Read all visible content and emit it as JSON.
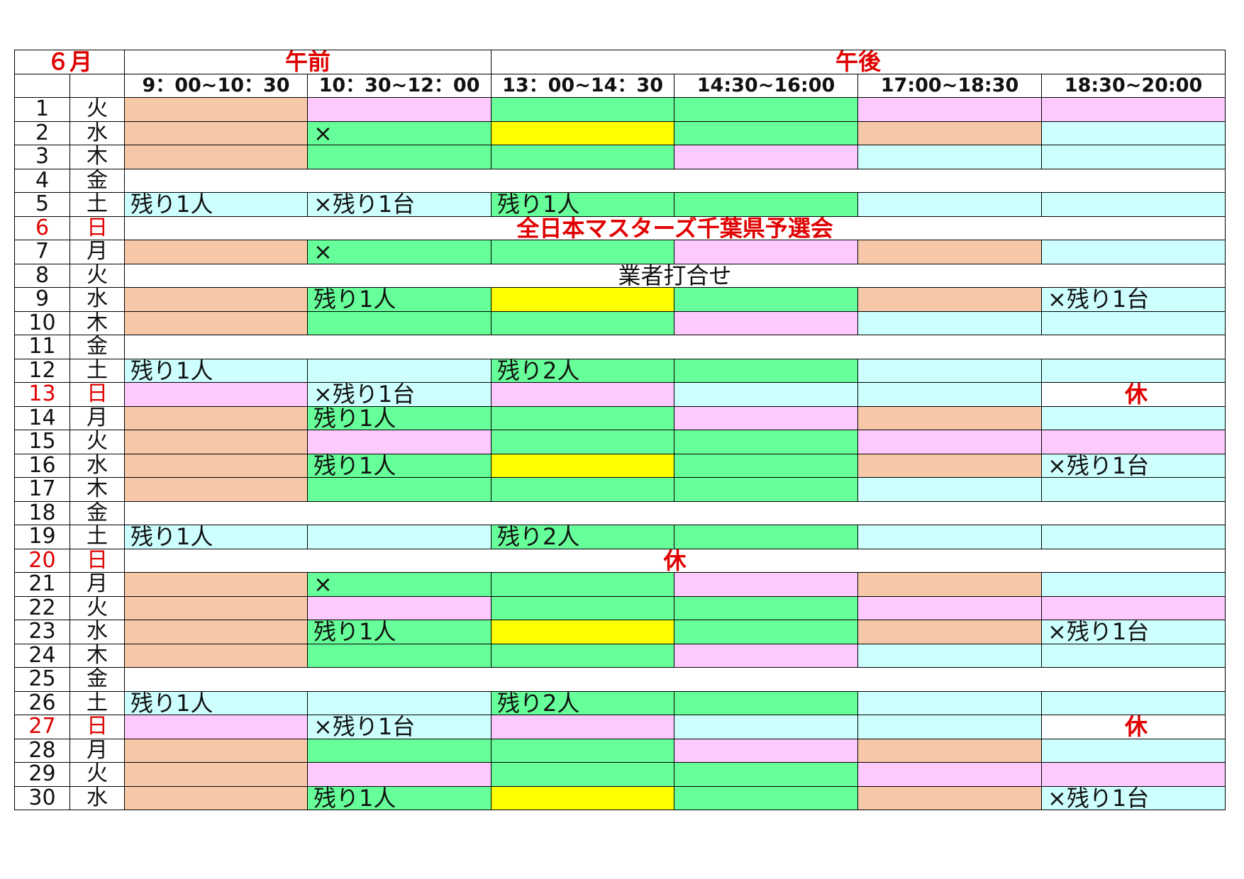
{
  "colors": {
    "orange": "#f7c8a8",
    "pink": "#fecafe",
    "green": "#66ff99",
    "yellow": "#ffff00",
    "cyan": "#ccfffe",
    "white": "#ffffff",
    "red_text": "#e00000"
  },
  "header": {
    "month": "６月",
    "morning": "午前",
    "afternoon": "午後",
    "slots": [
      "9：00~10：30",
      "10：30~12：00",
      "13：00~14：30",
      "14:30~16:00",
      "17:00~18:30",
      "18:30~20:00"
    ]
  },
  "rows": [
    {
      "day": "1",
      "wd": "火",
      "cells": [
        {
          "c": "orange",
          "t": ""
        },
        {
          "c": "pink",
          "t": ""
        },
        {
          "c": "green",
          "t": ""
        },
        {
          "c": "green",
          "t": ""
        },
        {
          "c": "pink",
          "t": ""
        },
        {
          "c": "pink",
          "t": ""
        }
      ]
    },
    {
      "day": "2",
      "wd": "水",
      "cells": [
        {
          "c": "orange",
          "t": ""
        },
        {
          "c": "green",
          "t": "×"
        },
        {
          "c": "yellow",
          "t": ""
        },
        {
          "c": "green",
          "t": ""
        },
        {
          "c": "orange",
          "t": ""
        },
        {
          "c": "cyan",
          "t": ""
        }
      ]
    },
    {
      "day": "3",
      "wd": "木",
      "cells": [
        {
          "c": "orange",
          "t": ""
        },
        {
          "c": "green",
          "t": ""
        },
        {
          "c": "green",
          "t": ""
        },
        {
          "c": "pink",
          "t": ""
        },
        {
          "c": "cyan",
          "t": ""
        },
        {
          "c": "cyan",
          "t": ""
        }
      ]
    },
    {
      "day": "4",
      "wd": "金",
      "span": {
        "t": "",
        "style": "plain"
      }
    },
    {
      "day": "5",
      "wd": "土",
      "cells": [
        {
          "c": "cyan",
          "t": "残り1人"
        },
        {
          "c": "cyan",
          "t": "×残り1台"
        },
        {
          "c": "green",
          "t": "残り1人"
        },
        {
          "c": "green",
          "t": ""
        },
        {
          "c": "cyan",
          "t": ""
        },
        {
          "c": "cyan",
          "t": ""
        }
      ]
    },
    {
      "day": "6",
      "wd": "日",
      "sunday": true,
      "span": {
        "t": "全日本マスターズ千葉県予選会",
        "style": "red"
      }
    },
    {
      "day": "7",
      "wd": "月",
      "cells": [
        {
          "c": "orange",
          "t": ""
        },
        {
          "c": "green",
          "t": "×"
        },
        {
          "c": "green",
          "t": ""
        },
        {
          "c": "pink",
          "t": ""
        },
        {
          "c": "orange",
          "t": ""
        },
        {
          "c": "cyan",
          "t": ""
        }
      ]
    },
    {
      "day": "8",
      "wd": "火",
      "span": {
        "t": "業者打合せ",
        "style": "plain"
      }
    },
    {
      "day": "9",
      "wd": "水",
      "cells": [
        {
          "c": "orange",
          "t": ""
        },
        {
          "c": "green",
          "t": "残り1人"
        },
        {
          "c": "yellow",
          "t": ""
        },
        {
          "c": "green",
          "t": ""
        },
        {
          "c": "orange",
          "t": ""
        },
        {
          "c": "cyan",
          "t": "×残り1台"
        }
      ]
    },
    {
      "day": "10",
      "wd": "木",
      "cells": [
        {
          "c": "orange",
          "t": ""
        },
        {
          "c": "green",
          "t": ""
        },
        {
          "c": "green",
          "t": ""
        },
        {
          "c": "pink",
          "t": ""
        },
        {
          "c": "cyan",
          "t": ""
        },
        {
          "c": "cyan",
          "t": ""
        }
      ]
    },
    {
      "day": "11",
      "wd": "金",
      "span": {
        "t": "",
        "style": "plain"
      }
    },
    {
      "day": "12",
      "wd": "土",
      "cells": [
        {
          "c": "cyan",
          "t": "残り1人"
        },
        {
          "c": "cyan",
          "t": ""
        },
        {
          "c": "green",
          "t": "残り2人"
        },
        {
          "c": "green",
          "t": ""
        },
        {
          "c": "cyan",
          "t": ""
        },
        {
          "c": "cyan",
          "t": ""
        }
      ]
    },
    {
      "day": "13",
      "wd": "日",
      "sunday": true,
      "cells": [
        {
          "c": "pink",
          "t": ""
        },
        {
          "c": "cyan",
          "t": "×残り1台"
        },
        {
          "c": "pink",
          "t": ""
        },
        {
          "c": "cyan",
          "t": ""
        },
        {
          "c": "cyan",
          "t": ""
        },
        {
          "c": "white",
          "t": "休",
          "holiday": true
        }
      ]
    },
    {
      "day": "14",
      "wd": "月",
      "cells": [
        {
          "c": "orange",
          "t": ""
        },
        {
          "c": "green",
          "t": "残り1人"
        },
        {
          "c": "green",
          "t": ""
        },
        {
          "c": "pink",
          "t": ""
        },
        {
          "c": "orange",
          "t": ""
        },
        {
          "c": "cyan",
          "t": ""
        }
      ]
    },
    {
      "day": "15",
      "wd": "火",
      "cells": [
        {
          "c": "orange",
          "t": ""
        },
        {
          "c": "pink",
          "t": ""
        },
        {
          "c": "green",
          "t": ""
        },
        {
          "c": "green",
          "t": ""
        },
        {
          "c": "pink",
          "t": ""
        },
        {
          "c": "pink",
          "t": ""
        }
      ]
    },
    {
      "day": "16",
      "wd": "水",
      "cells": [
        {
          "c": "orange",
          "t": ""
        },
        {
          "c": "green",
          "t": "残り1人"
        },
        {
          "c": "yellow",
          "t": ""
        },
        {
          "c": "green",
          "t": ""
        },
        {
          "c": "orange",
          "t": ""
        },
        {
          "c": "cyan",
          "t": "×残り1台"
        }
      ]
    },
    {
      "day": "17",
      "wd": "木",
      "cells": [
        {
          "c": "orange",
          "t": ""
        },
        {
          "c": "green",
          "t": ""
        },
        {
          "c": "green",
          "t": ""
        },
        {
          "c": "green",
          "t": ""
        },
        {
          "c": "cyan",
          "t": ""
        },
        {
          "c": "cyan",
          "t": ""
        }
      ]
    },
    {
      "day": "18",
      "wd": "金",
      "span": {
        "t": "",
        "style": "plain"
      }
    },
    {
      "day": "19",
      "wd": "土",
      "cells": [
        {
          "c": "cyan",
          "t": "残り1人"
        },
        {
          "c": "cyan",
          "t": ""
        },
        {
          "c": "green",
          "t": "残り2人"
        },
        {
          "c": "green",
          "t": ""
        },
        {
          "c": "cyan",
          "t": ""
        },
        {
          "c": "cyan",
          "t": ""
        }
      ]
    },
    {
      "day": "20",
      "wd": "日",
      "sunday": true,
      "span": {
        "t": "休",
        "style": "red"
      }
    },
    {
      "day": "21",
      "wd": "月",
      "cells": [
        {
          "c": "orange",
          "t": ""
        },
        {
          "c": "green",
          "t": "×"
        },
        {
          "c": "green",
          "t": ""
        },
        {
          "c": "pink",
          "t": ""
        },
        {
          "c": "orange",
          "t": ""
        },
        {
          "c": "cyan",
          "t": ""
        }
      ]
    },
    {
      "day": "22",
      "wd": "火",
      "cells": [
        {
          "c": "orange",
          "t": ""
        },
        {
          "c": "pink",
          "t": ""
        },
        {
          "c": "green",
          "t": ""
        },
        {
          "c": "green",
          "t": ""
        },
        {
          "c": "pink",
          "t": ""
        },
        {
          "c": "pink",
          "t": ""
        }
      ]
    },
    {
      "day": "23",
      "wd": "水",
      "cells": [
        {
          "c": "orange",
          "t": ""
        },
        {
          "c": "green",
          "t": "残り1人"
        },
        {
          "c": "yellow",
          "t": ""
        },
        {
          "c": "green",
          "t": ""
        },
        {
          "c": "orange",
          "t": ""
        },
        {
          "c": "cyan",
          "t": "×残り1台"
        }
      ]
    },
    {
      "day": "24",
      "wd": "木",
      "cells": [
        {
          "c": "orange",
          "t": ""
        },
        {
          "c": "green",
          "t": ""
        },
        {
          "c": "green",
          "t": ""
        },
        {
          "c": "pink",
          "t": ""
        },
        {
          "c": "cyan",
          "t": ""
        },
        {
          "c": "cyan",
          "t": ""
        }
      ]
    },
    {
      "day": "25",
      "wd": "金",
      "span": {
        "t": "",
        "style": "plain"
      }
    },
    {
      "day": "26",
      "wd": "土",
      "cells": [
        {
          "c": "cyan",
          "t": "残り1人"
        },
        {
          "c": "cyan",
          "t": ""
        },
        {
          "c": "green",
          "t": "残り2人"
        },
        {
          "c": "green",
          "t": ""
        },
        {
          "c": "cyan",
          "t": ""
        },
        {
          "c": "cyan",
          "t": ""
        }
      ]
    },
    {
      "day": "27",
      "wd": "日",
      "sunday": true,
      "cells": [
        {
          "c": "pink",
          "t": ""
        },
        {
          "c": "cyan",
          "t": "×残り1台"
        },
        {
          "c": "pink",
          "t": ""
        },
        {
          "c": "cyan",
          "t": ""
        },
        {
          "c": "cyan",
          "t": ""
        },
        {
          "c": "white",
          "t": "休",
          "holiday": true
        }
      ]
    },
    {
      "day": "28",
      "wd": "月",
      "cells": [
        {
          "c": "orange",
          "t": ""
        },
        {
          "c": "green",
          "t": ""
        },
        {
          "c": "green",
          "t": ""
        },
        {
          "c": "pink",
          "t": ""
        },
        {
          "c": "orange",
          "t": ""
        },
        {
          "c": "cyan",
          "t": ""
        }
      ]
    },
    {
      "day": "29",
      "wd": "火",
      "cells": [
        {
          "c": "orange",
          "t": ""
        },
        {
          "c": "pink",
          "t": ""
        },
        {
          "c": "green",
          "t": ""
        },
        {
          "c": "green",
          "t": ""
        },
        {
          "c": "pink",
          "t": ""
        },
        {
          "c": "pink",
          "t": ""
        }
      ]
    },
    {
      "day": "30",
      "wd": "水",
      "cells": [
        {
          "c": "orange",
          "t": ""
        },
        {
          "c": "green",
          "t": "残り1人"
        },
        {
          "c": "yellow",
          "t": ""
        },
        {
          "c": "green",
          "t": ""
        },
        {
          "c": "orange",
          "t": ""
        },
        {
          "c": "cyan",
          "t": "×残り1台"
        }
      ]
    }
  ]
}
